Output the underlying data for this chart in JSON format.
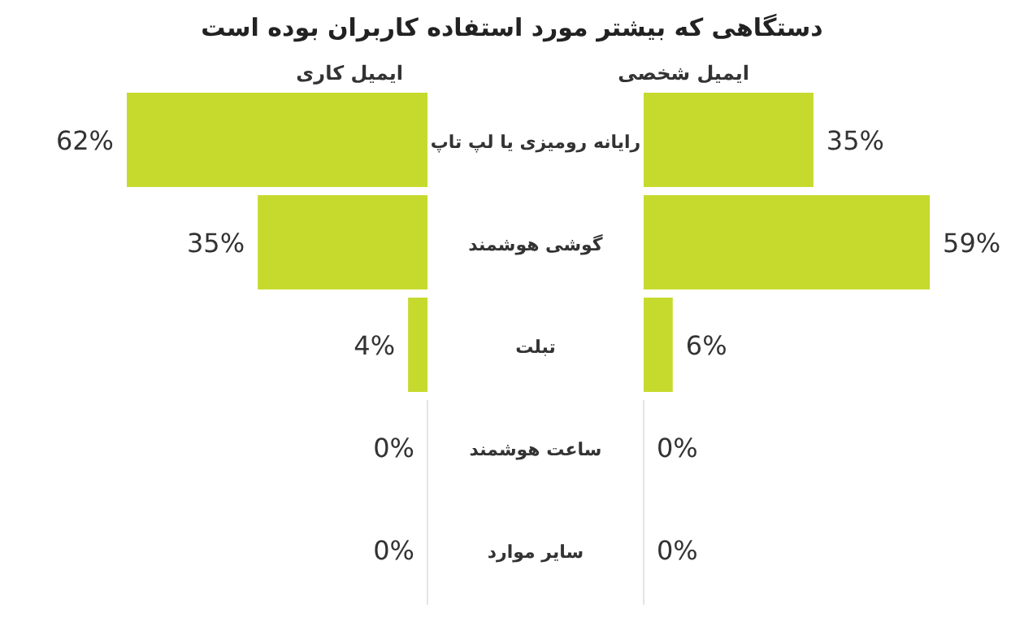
{
  "chart_data": [
    {
      "type": "bar",
      "orientation": "horizontal",
      "title": "دستگاهی که بیشتر مورد استفاده کاربران بوده است",
      "categories": [
        "رایانه رومیزی یا لپ تاپ",
        "گوشی هوشمند",
        "تبلت",
        "ساعت هوشمند",
        "سایر موارد"
      ],
      "series": [
        {
          "name": "ایمیل کاری",
          "color": "#c6da2e",
          "values": [
            62,
            35,
            4,
            0,
            0
          ],
          "value_labels": [
            "62%",
            "35%",
            "4%",
            "0%",
            "0%"
          ]
        }
      ],
      "legend": "top"
    },
    {
      "type": "bar",
      "orientation": "horizontal",
      "categories": [
        null,
        null,
        null,
        null,
        null
      ],
      "series": [
        {
          "name": "ایمیل شخصی",
          "color": "#c6da2e",
          "values": [
            35,
            59,
            6,
            0,
            0
          ],
          "value_labels": [
            "35%",
            "59%",
            "6%",
            "0%",
            "0%"
          ]
        }
      ],
      "legend": "top"
    }
  ]
}
